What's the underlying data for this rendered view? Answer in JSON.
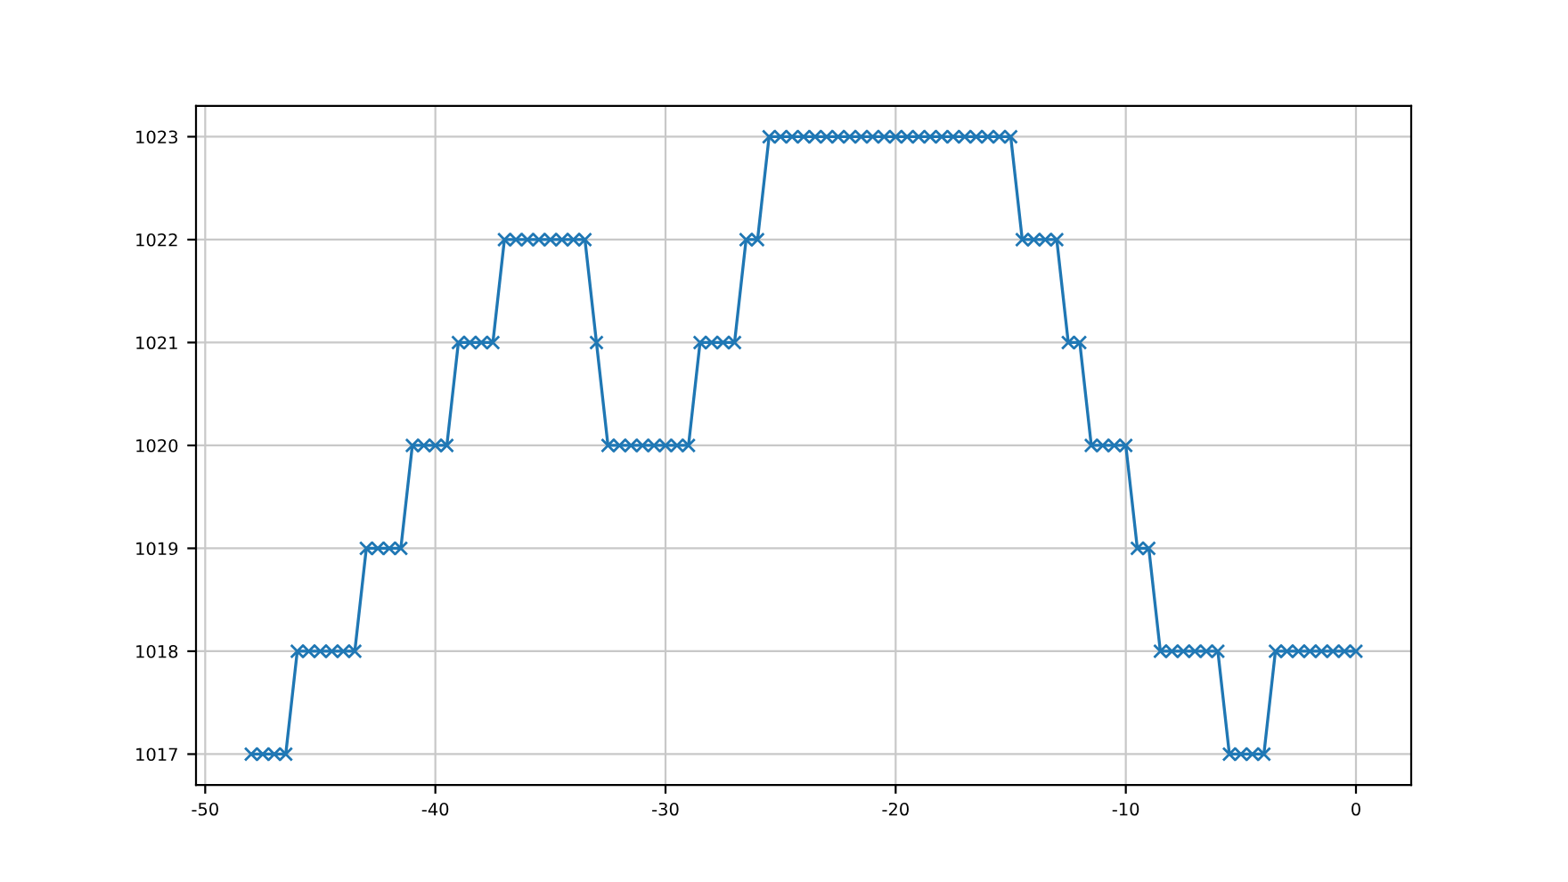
{
  "chart_data": {
    "type": "line",
    "x": [
      -48,
      -47.5,
      -47,
      -46.5,
      -46,
      -45.5,
      -45,
      -44.5,
      -44,
      -43.5,
      -43,
      -42.5,
      -42,
      -41.5,
      -41,
      -40.5,
      -40,
      -39.5,
      -39,
      -38.5,
      -38,
      -37.5,
      -37,
      -36.5,
      -36,
      -35.5,
      -35,
      -34.5,
      -34,
      -33.5,
      -33,
      -32.5,
      -32,
      -31.5,
      -31,
      -30.5,
      -30,
      -29.5,
      -29,
      -28.5,
      -28,
      -27.5,
      -27,
      -26.5,
      -26,
      -25.5,
      -25,
      -24.5,
      -24,
      -23.5,
      -23,
      -22.5,
      -22,
      -21.5,
      -21,
      -20.5,
      -20,
      -19.5,
      -19,
      -18.5,
      -18,
      -17.5,
      -17,
      -16.5,
      -16,
      -15.5,
      -15,
      -14.5,
      -14,
      -13.5,
      -13,
      -12.5,
      -12,
      -11.5,
      -11,
      -10.5,
      -10,
      -9.5,
      -9,
      -8.5,
      -8,
      -7.5,
      -7,
      -6.5,
      -6,
      -5.5,
      -5,
      -4.5,
      -4,
      -3.5,
      -3,
      -2.5,
      -2,
      -1.5,
      -1,
      -0.5,
      0
    ],
    "series": [
      {
        "color": "#1f77b4",
        "values": [
          1017,
          1017,
          1017,
          1017,
          1018,
          1018,
          1018,
          1018,
          1018,
          1018,
          1019,
          1019,
          1019,
          1019,
          1020,
          1020,
          1020,
          1020,
          1021,
          1021,
          1021,
          1021,
          1022,
          1022,
          1022,
          1022,
          1022,
          1022,
          1022,
          1022,
          1021,
          1020,
          1020,
          1020,
          1020,
          1020,
          1020,
          1020,
          1020,
          1021,
          1021,
          1021,
          1021,
          1022,
          1022,
          1023,
          1023,
          1023,
          1023,
          1023,
          1023,
          1023,
          1023,
          1023,
          1023,
          1023,
          1023,
          1023,
          1023,
          1023,
          1023,
          1023,
          1023,
          1023,
          1023,
          1023,
          1023,
          1022,
          1022,
          1022,
          1022,
          1021,
          1021,
          1020,
          1020,
          1020,
          1020,
          1019,
          1019,
          1018,
          1018,
          1018,
          1018,
          1018,
          1018,
          1017,
          1017,
          1017,
          1017,
          1018,
          1018,
          1018,
          1018,
          1018,
          1018,
          1018,
          1018
        ]
      }
    ],
    "xlim": [
      -50.4,
      2.4
    ],
    "ylim": [
      1016.7,
      1023.3
    ],
    "xticks": [
      -50,
      -40,
      -30,
      -20,
      -10,
      0
    ],
    "yticks": [
      1017,
      1018,
      1019,
      1020,
      1021,
      1022,
      1023
    ],
    "grid": true,
    "marker": "cross",
    "line_style": "solid",
    "legend": false
  }
}
